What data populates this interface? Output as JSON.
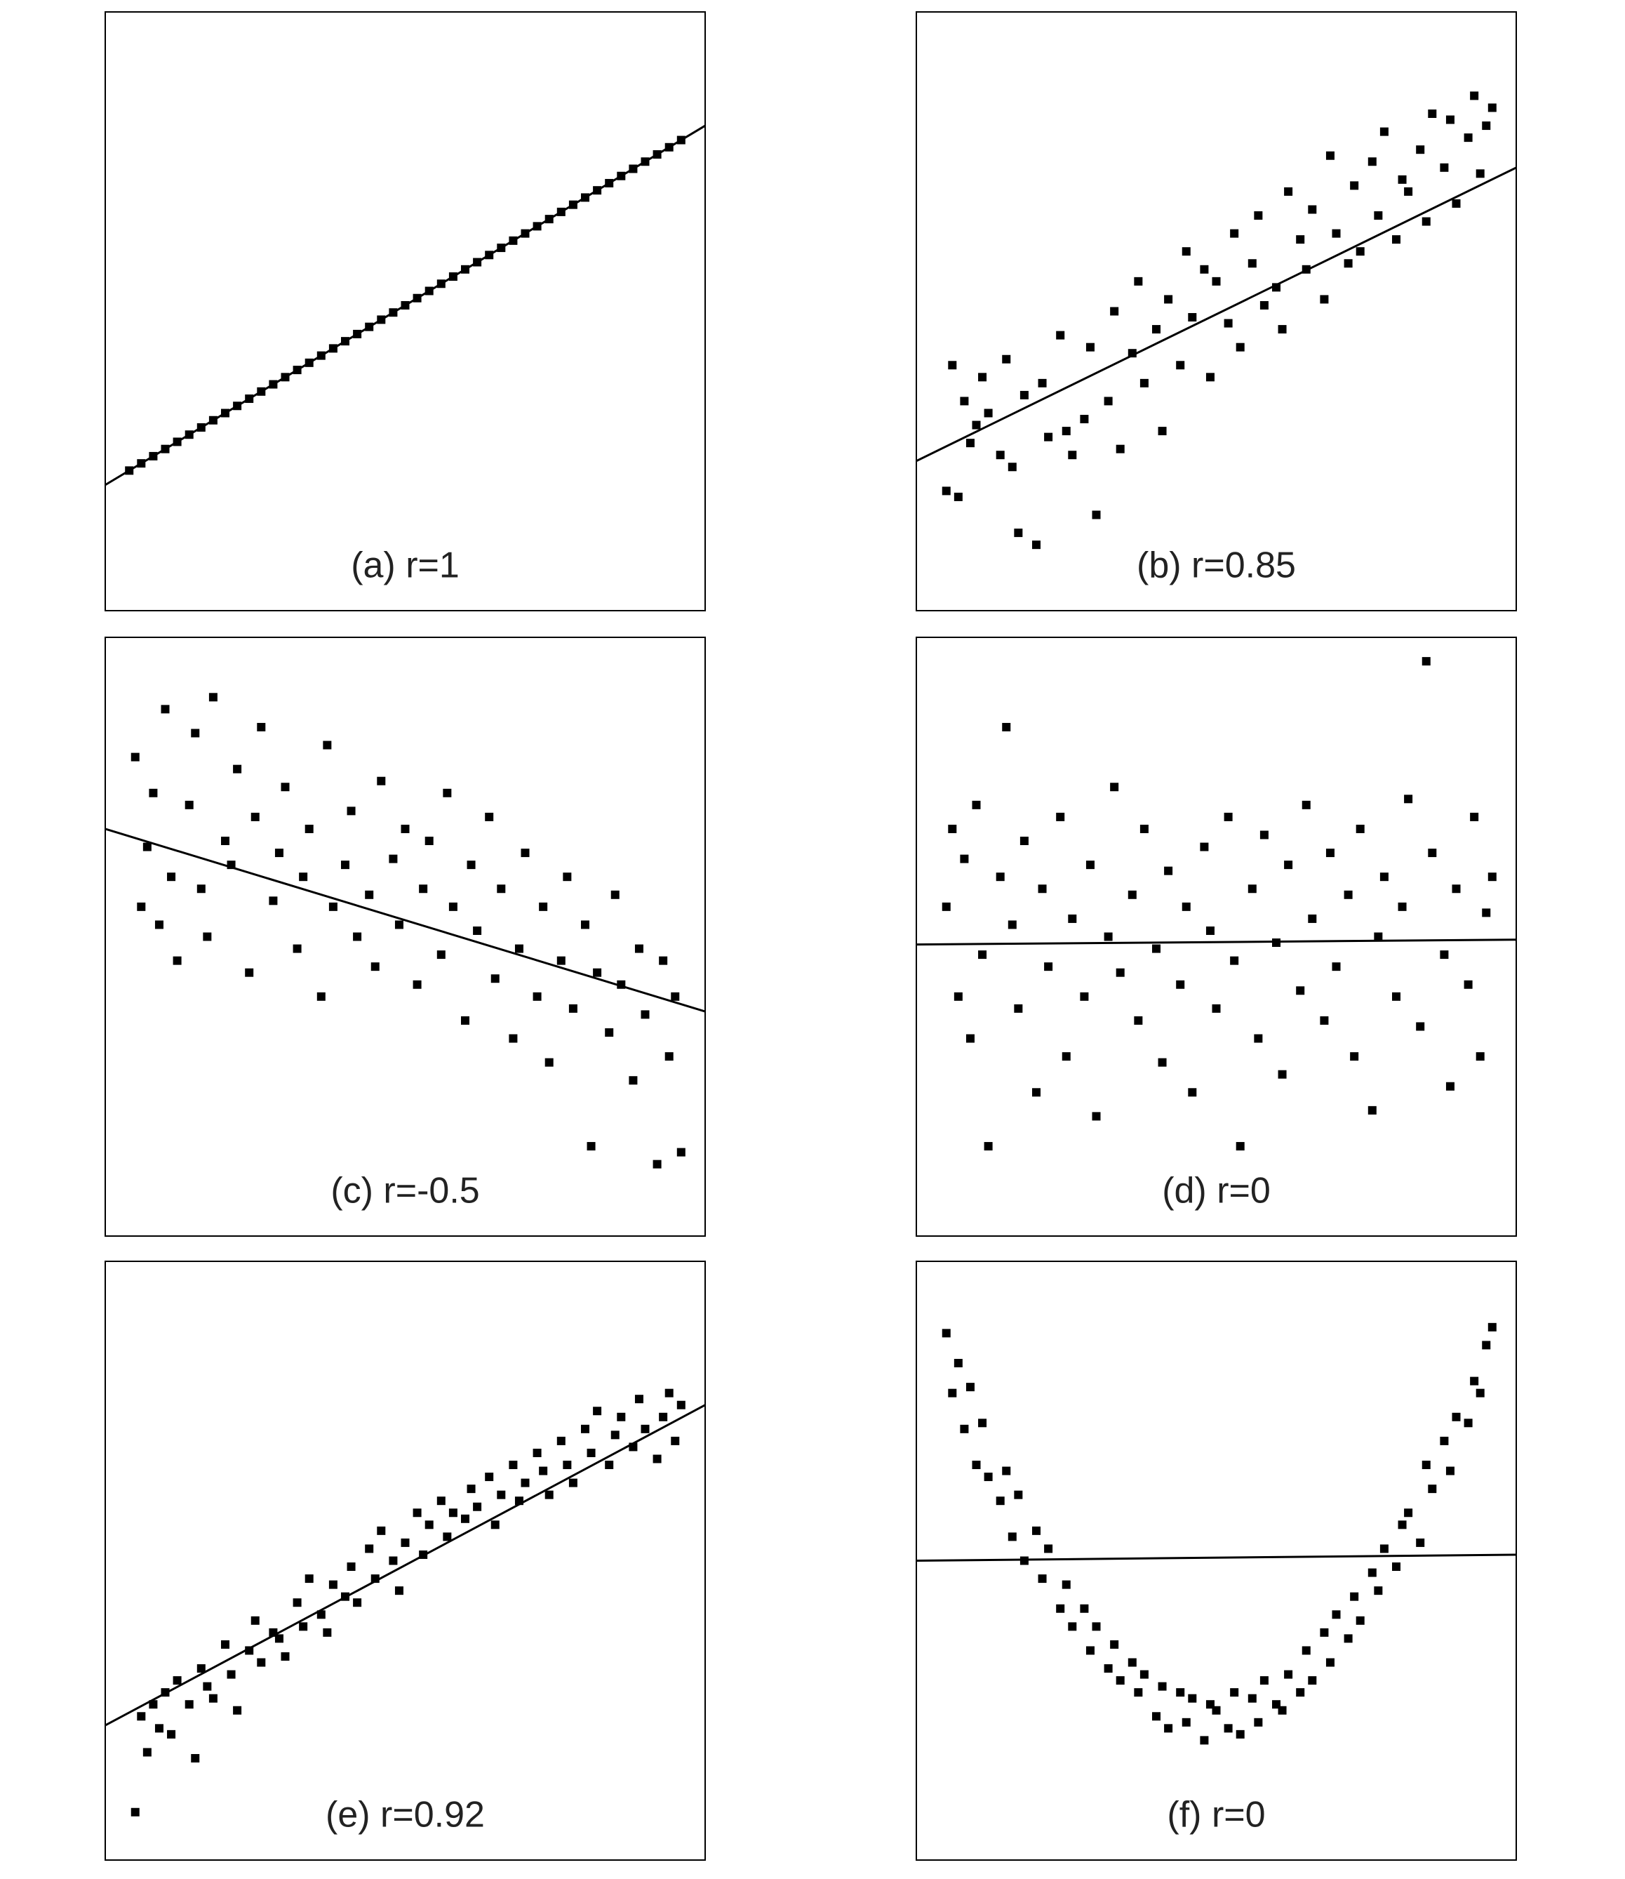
{
  "chart_data": [
    {
      "type": "scatter",
      "title": "(a) r=1",
      "color": "#000000",
      "xlim": [
        0,
        100
      ],
      "ylim": [
        0,
        100
      ],
      "x": [
        4,
        6,
        8,
        10,
        12,
        14,
        16,
        18,
        20,
        22,
        24,
        26,
        28,
        30,
        32,
        34,
        36,
        38,
        40,
        42,
        44,
        46,
        48,
        50,
        52,
        54,
        56,
        58,
        60,
        62,
        64,
        66,
        68,
        70,
        72,
        74,
        76,
        78,
        80,
        82,
        84,
        86,
        88,
        90,
        92,
        94,
        96
      ],
      "values": [
        23.4,
        24.6,
        25.8,
        27,
        28.2,
        29.4,
        30.6,
        31.8,
        33,
        34.2,
        35.4,
        36.6,
        37.8,
        39,
        40.2,
        41.4,
        42.6,
        43.8,
        45,
        46.2,
        47.4,
        48.6,
        49.8,
        51,
        52.2,
        53.4,
        54.6,
        55.8,
        57,
        58.2,
        59.4,
        60.6,
        61.8,
        63,
        64.2,
        65.4,
        66.6,
        67.8,
        69,
        70.2,
        71.4,
        72.6,
        73.8,
        75,
        76.2,
        77.4,
        78.6
      ],
      "fit": {
        "x": [
          0,
          100
        ],
        "y": [
          21,
          81
        ]
      }
    },
    {
      "type": "scatter",
      "title": "(b) r=0.85",
      "color": "#000000",
      "xlim": [
        0,
        100
      ],
      "ylim": [
        0,
        100
      ],
      "x": [
        5,
        6,
        7,
        8,
        9,
        10,
        11,
        12,
        14,
        15,
        16,
        17,
        18,
        20,
        21,
        22,
        24,
        25,
        26,
        28,
        29,
        30,
        32,
        33,
        34,
        36,
        37,
        38,
        40,
        41,
        42,
        44,
        45,
        46,
        48,
        49,
        50,
        52,
        53,
        54,
        56,
        57,
        58,
        60,
        61,
        62,
        64,
        65,
        66,
        68,
        69,
        70,
        72,
        73,
        74,
        76,
        77,
        78,
        80,
        81,
        82,
        84,
        85,
        86,
        88,
        89,
        90,
        92,
        93,
        94,
        95,
        96
      ],
      "values": [
        20,
        41,
        19,
        35,
        28,
        31,
        39,
        33,
        26,
        42,
        24,
        13,
        36,
        11,
        38,
        29,
        46,
        30,
        26,
        32,
        44,
        16,
        35,
        50,
        27,
        43,
        55,
        38,
        47,
        30,
        52,
        41,
        60,
        49,
        57,
        39,
        55,
        48,
        63,
        44,
        58,
        66,
        51,
        54,
        47,
        70,
        62,
        57,
        67,
        52,
        76,
        63,
        58,
        71,
        60,
        75,
        66,
        80,
        62,
        72,
        70,
        77,
        65,
        83,
        74,
        82,
        68,
        79,
        86,
        73,
        81,
        84
      ],
      "fit": {
        "x": [
          0,
          100
        ],
        "y": [
          25,
          74
        ]
      }
    },
    {
      "type": "scatter",
      "title": "(c) r=-0.5",
      "color": "#000000",
      "xlim": [
        0,
        100
      ],
      "ylim": [
        0,
        100
      ],
      "x": [
        5,
        6,
        7,
        8,
        9,
        10,
        11,
        12,
        14,
        15,
        16,
        17,
        18,
        20,
        21,
        22,
        24,
        25,
        26,
        28,
        29,
        30,
        32,
        33,
        34,
        36,
        37,
        38,
        40,
        41,
        42,
        44,
        45,
        46,
        48,
        49,
        50,
        52,
        53,
        54,
        56,
        57,
        58,
        60,
        61,
        62,
        64,
        65,
        66,
        68,
        69,
        70,
        72,
        73,
        74,
        76,
        77,
        78,
        80,
        81,
        82,
        84,
        85,
        86,
        88,
        89,
        90,
        92,
        93,
        94,
        95,
        96
      ],
      "values": [
        80,
        55,
        65,
        74,
        52,
        88,
        60,
        46,
        72,
        84,
        58,
        50,
        90,
        66,
        62,
        78,
        44,
        70,
        85,
        56,
        64,
        75,
        48,
        60,
        68,
        40,
        82,
        55,
        62,
        71,
        50,
        57,
        45,
        76,
        63,
        52,
        68,
        42,
        58,
        66,
        47,
        74,
        55,
        36,
        62,
        51,
        70,
        43,
        58,
        33,
        48,
        64,
        40,
        55,
        29,
        46,
        60,
        38,
        52,
        15,
        44,
        34,
        57,
        42,
        26,
        48,
        37,
        12,
        46,
        30,
        40,
        14
      ],
      "fit": {
        "x": [
          0,
          100
        ],
        "y": [
          68,
          37.5
        ]
      }
    },
    {
      "type": "scatter",
      "title": "(d) r=0",
      "color": "#000000",
      "xlim": [
        0,
        100
      ],
      "ylim": [
        0,
        100
      ],
      "x": [
        5,
        6,
        7,
        8,
        9,
        10,
        11,
        12,
        14,
        15,
        16,
        17,
        18,
        20,
        21,
        22,
        24,
        25,
        26,
        28,
        29,
        30,
        32,
        33,
        34,
        36,
        37,
        38,
        40,
        41,
        42,
        44,
        45,
        46,
        48,
        49,
        50,
        52,
        53,
        54,
        56,
        57,
        58,
        60,
        61,
        62,
        64,
        65,
        66,
        68,
        69,
        70,
        72,
        73,
        74,
        76,
        77,
        78,
        80,
        81,
        82,
        84,
        85,
        86,
        88,
        89,
        90,
        92,
        93,
        94,
        95,
        96
      ],
      "values": [
        55,
        68,
        40,
        63,
        33,
        72,
        47,
        15,
        60,
        85,
        52,
        38,
        66,
        24,
        58,
        45,
        70,
        30,
        53,
        40,
        62,
        20,
        50,
        75,
        44,
        57,
        36,
        68,
        48,
        29,
        61,
        42,
        55,
        24,
        65,
        51,
        38,
        70,
        46,
        15,
        58,
        33,
        67,
        49,
        27,
        62,
        41,
        72,
        53,
        36,
        64,
        45,
        57,
        30,
        68,
        21,
        50,
        60,
        40,
        55,
        73,
        35,
        96,
        64,
        47,
        25,
        58,
        42,
        70,
        30,
        54,
        60
      ],
      "fit": {
        "x": [
          0,
          100
        ],
        "y": [
          48.7,
          49.5
        ]
      }
    },
    {
      "type": "scatter",
      "title": "(e) r=0.92",
      "color": "#000000",
      "xlim": [
        0,
        100
      ],
      "ylim": [
        0,
        100
      ],
      "x": [
        5,
        6,
        7,
        8,
        9,
        10,
        11,
        12,
        14,
        15,
        16,
        17,
        18,
        20,
        21,
        22,
        24,
        25,
        26,
        28,
        29,
        30,
        32,
        33,
        34,
        36,
        37,
        38,
        40,
        41,
        42,
        44,
        45,
        46,
        48,
        49,
        50,
        52,
        53,
        54,
        56,
        57,
        58,
        60,
        61,
        62,
        64,
        65,
        66,
        68,
        69,
        70,
        72,
        73,
        74,
        76,
        77,
        78,
        80,
        81,
        82,
        84,
        85,
        86,
        88,
        89,
        90,
        92,
        93,
        94,
        95,
        96
      ],
      "values": [
        8,
        24,
        18,
        26,
        22,
        28,
        21,
        30,
        26,
        17,
        32,
        29,
        27,
        36,
        31,
        25,
        35,
        40,
        33,
        38,
        37,
        34,
        43,
        39,
        47,
        41,
        38,
        46,
        44,
        49,
        43,
        52,
        47,
        55,
        50,
        45,
        53,
        58,
        51,
        56,
        60,
        54,
        58,
        57,
        62,
        59,
        64,
        56,
        61,
        66,
        60,
        63,
        68,
        65,
        61,
        70,
        66,
        63,
        72,
        68,
        75,
        66,
        71,
        74,
        69,
        77,
        72,
        67,
        74,
        78,
        70,
        76
      ],
      "fit": {
        "x": [
          0,
          100
        ],
        "y": [
          22.5,
          76
        ]
      }
    },
    {
      "type": "scatter",
      "title": "(f) r=0",
      "color": "#000000",
      "xlim": [
        0,
        100
      ],
      "ylim": [
        0,
        100
      ],
      "x": [
        5,
        6,
        7,
        8,
        9,
        10,
        11,
        12,
        14,
        15,
        16,
        17,
        18,
        20,
        21,
        22,
        24,
        25,
        26,
        28,
        29,
        30,
        32,
        33,
        34,
        36,
        37,
        38,
        40,
        41,
        42,
        44,
        45,
        46,
        48,
        49,
        50,
        52,
        53,
        54,
        56,
        57,
        58,
        60,
        61,
        62,
        64,
        65,
        66,
        68,
        69,
        70,
        72,
        73,
        74,
        76,
        77,
        78,
        80,
        81,
        82,
        84,
        85,
        86,
        88,
        89,
        90,
        92,
        93,
        94,
        95,
        96
      ],
      "values": [
        88,
        78,
        83,
        72,
        79,
        66,
        73,
        64,
        60,
        65,
        54,
        61,
        50,
        55,
        47,
        52,
        42,
        46,
        39,
        42,
        35,
        39,
        32,
        36,
        30,
        33,
        28,
        31,
        24,
        29,
        22,
        28,
        23,
        27,
        20,
        26,
        25,
        22,
        28,
        21,
        27,
        23,
        30,
        26,
        25,
        31,
        28,
        35,
        30,
        38,
        33,
        41,
        37,
        44,
        40,
        48,
        45,
        52,
        49,
        56,
        58,
        53,
        66,
        62,
        70,
        65,
        74,
        73,
        80,
        78,
        86,
        89
      ],
      "fit": {
        "x": [
          0,
          100
        ],
        "y": [
          50,
          51
        ]
      }
    }
  ]
}
